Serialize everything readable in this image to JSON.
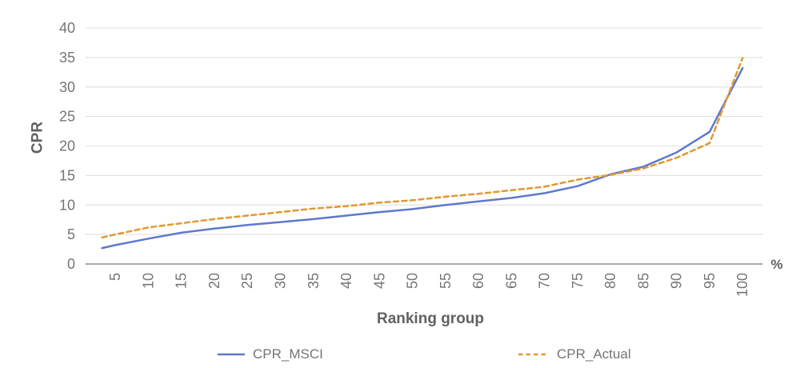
{
  "chart_data": {
    "type": "line",
    "title": "",
    "xlabel": "Ranking group",
    "ylabel": "CPR",
    "x_axis_unit": "%",
    "x": [
      3,
      5,
      10,
      15,
      20,
      25,
      30,
      35,
      40,
      45,
      50,
      55,
      60,
      65,
      70,
      75,
      80,
      85,
      90,
      95,
      100
    ],
    "series": [
      {
        "name": "CPR_MSCI",
        "line_style": "solid",
        "color": "#5E79CE",
        "values": [
          2.7,
          3.2,
          4.3,
          5.3,
          6.0,
          6.6,
          7.1,
          7.6,
          8.2,
          8.8,
          9.3,
          10.0,
          10.6,
          11.2,
          12.0,
          13.2,
          15.2,
          16.5,
          18.9,
          22.4,
          33.2
        ]
      },
      {
        "name": "CPR_Actual",
        "line_style": "dashed",
        "color": "#E2982F",
        "values": [
          4.5,
          5.0,
          6.2,
          6.9,
          7.6,
          8.2,
          8.8,
          9.4,
          9.8,
          10.4,
          10.8,
          11.4,
          11.9,
          12.5,
          13.1,
          14.3,
          15.1,
          16.2,
          18.0,
          20.5,
          34.9
        ]
      }
    ],
    "x_ticks": [
      5,
      10,
      15,
      20,
      25,
      30,
      35,
      40,
      45,
      50,
      55,
      60,
      65,
      70,
      75,
      80,
      85,
      90,
      95,
      100
    ],
    "y_ticks": [
      0,
      5,
      10,
      15,
      20,
      25,
      30,
      35,
      40
    ],
    "xlim": [
      0.5,
      103
    ],
    "ylim": [
      0,
      40
    ],
    "grid": "horizontal-only",
    "legend_position": "bottom",
    "colors": {
      "grid": "#E3E3E3",
      "axis_line": "#9AA0A6",
      "tick_label": "#757575",
      "axis_title": "#616161",
      "background": "#FFFFFF"
    }
  }
}
